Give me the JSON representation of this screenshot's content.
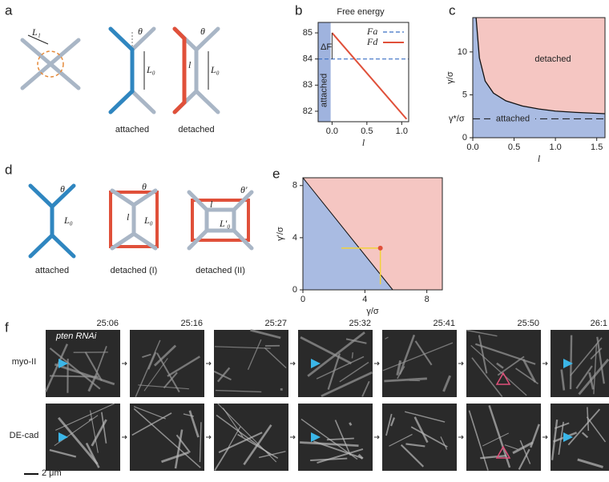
{
  "panel_labels": [
    "a",
    "b",
    "c",
    "d",
    "e",
    "f"
  ],
  "a": {
    "symbols": [
      "L₁",
      "θ",
      "L₀",
      "θ",
      "l",
      "L₀"
    ],
    "labels": [
      "attached",
      "detached"
    ]
  },
  "b": {
    "title": "Free energy",
    "xlabel": "l",
    "xlim": [
      -0.2,
      1.1
    ],
    "xticks": [
      {
        "value": 0,
        "label": "0.0"
      },
      {
        "value": 0.5,
        "label": "0.5"
      },
      {
        "value": 1,
        "label": "1.0"
      }
    ],
    "ylim": [
      81.6,
      85.4
    ],
    "yticks": [
      82,
      83,
      84,
      85
    ],
    "series": [
      {
        "name": "Fa",
        "color": "#3a6fc4",
        "x": [
          -0.2,
          1.1
        ],
        "values": [
          84,
          84
        ]
      },
      {
        "name": "Fd",
        "color": "#e0503a",
        "x": [
          0,
          1.07
        ],
        "values": [
          85,
          81.7
        ]
      }
    ],
    "band": [
      -0.2,
      -0.02
    ],
    "delta_label": "ΔF",
    "band_label": "attached"
  },
  "c": {
    "xlabel": "l",
    "ylabel": "γ/σ",
    "xlim": [
      0,
      1.6
    ],
    "xticks": [
      {
        "value": 0,
        "label": "0.0"
      },
      {
        "value": 0.5,
        "label": "0.5"
      },
      {
        "value": 1,
        "label": "1.0"
      },
      {
        "value": 1.5,
        "label": "1.5"
      }
    ],
    "ylim": [
      0,
      14
    ],
    "yticks": [
      0,
      5,
      10
    ],
    "boundary": {
      "x": [
        0.04,
        0.08,
        0.15,
        0.25,
        0.4,
        0.6,
        0.8,
        1.0,
        1.25,
        1.6
      ],
      "values": [
        14,
        9.3,
        6.6,
        5.2,
        4.3,
        3.7,
        3.35,
        3.1,
        2.95,
        2.8
      ]
    },
    "threshold": 2.2,
    "threshold_label": "γ*/σ",
    "labels": [
      "detached",
      "attached"
    ]
  },
  "d": {
    "symbols": [
      "θ",
      "L₀",
      "θ",
      "l",
      "L₀",
      "θ'",
      "l",
      "L'₀"
    ],
    "labels": [
      "attached",
      "detached (I)",
      "detached (II)"
    ]
  },
  "e": {
    "xlabel": "γ/σ",
    "ylabel": "γ'/σ",
    "xlim": [
      0,
      9
    ],
    "xticks": [
      0,
      4,
      8
    ],
    "ylim": [
      0,
      8.6
    ],
    "yticks": [
      0,
      4,
      8
    ],
    "boundary": {
      "x": [
        0,
        5.8
      ],
      "values": [
        8.6,
        0
      ]
    },
    "point": {
      "x": 5,
      "y": 3.2
    }
  },
  "f": {
    "times": [
      "25:06",
      "25:16",
      "25:27",
      "25:32",
      "25:41",
      "25:50",
      "26:1"
    ],
    "rows": [
      "myo-II",
      "DE-cad"
    ],
    "inset": "pten RNAi",
    "scale": "2 μm"
  }
}
